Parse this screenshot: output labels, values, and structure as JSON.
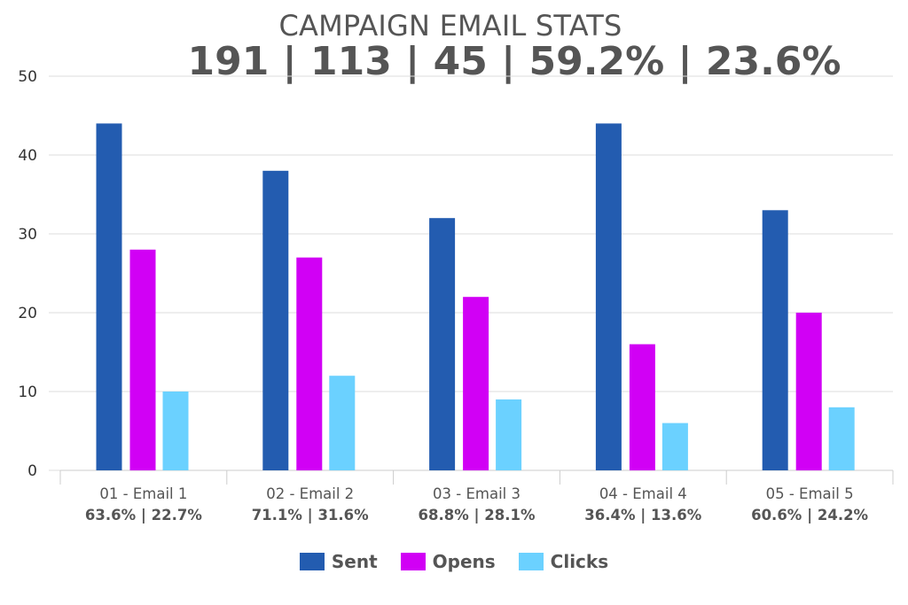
{
  "chart_data": {
    "type": "bar",
    "title": "CAMPAIGN EMAIL STATS",
    "subtitle": "191 | 113 | 45 | 59.2% | 23.6%",
    "categories": [
      "01 - Email 1",
      "02 - Email 2",
      "03 - Email 3",
      "04 - Email 4",
      "05 - Email 5"
    ],
    "category_sublabels": [
      "63.6% | 22.7%",
      "71.1% | 31.6%",
      "68.8% | 28.1%",
      "36.4% | 13.6%",
      "60.6% | 24.2%"
    ],
    "series": [
      {
        "name": "Sent",
        "color": "#235cb0",
        "values": [
          44,
          38,
          32,
          44,
          33
        ]
      },
      {
        "name": "Opens",
        "color": "#d100f5",
        "values": [
          28,
          27,
          22,
          16,
          20
        ]
      },
      {
        "name": "Clicks",
        "color": "#6bd1ff",
        "values": [
          10,
          12,
          9,
          6,
          8
        ]
      }
    ],
    "ylim": [
      0,
      50
    ],
    "yticks": [
      0,
      10,
      20,
      30,
      40,
      50
    ],
    "grid": true,
    "legend_position": "bottom"
  }
}
